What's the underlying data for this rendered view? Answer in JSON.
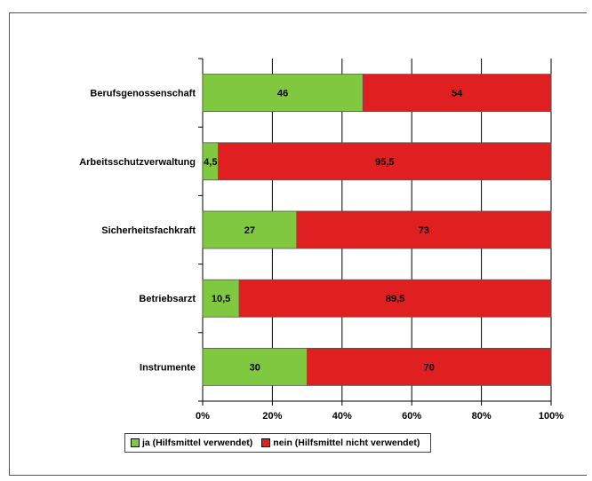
{
  "colors": {
    "ja": "#80c840",
    "nein": "#e02020",
    "grid": "#000000"
  },
  "chart_data": {
    "type": "bar",
    "orientation": "horizontal",
    "stacked": true,
    "percent": true,
    "categories": [
      "Berufsgenossenschaft",
      "Arbeitsschutzverwaltung",
      "Sicherheitsfachkraft",
      "Betriebsarzt",
      "Instrumente"
    ],
    "series": [
      {
        "name": "ja (Hilfsmittel verwendet)",
        "values": [
          46,
          4.5,
          27,
          10.5,
          30
        ],
        "labels": [
          "46",
          "4,5",
          "27",
          "10,5",
          "30"
        ],
        "color": "#80c840"
      },
      {
        "name": "nein (Hilfsmittel nicht verwendet)",
        "values": [
          54,
          95.5,
          73,
          89.5,
          70
        ],
        "labels": [
          "54",
          "95,5",
          "73",
          "89,5",
          "70"
        ],
        "color": "#e02020"
      }
    ],
    "xticks": [
      "0%",
      "20%",
      "40%",
      "60%",
      "80%",
      "100%"
    ],
    "xlim": [
      0,
      100
    ],
    "grid": true,
    "legend": "bottom"
  }
}
